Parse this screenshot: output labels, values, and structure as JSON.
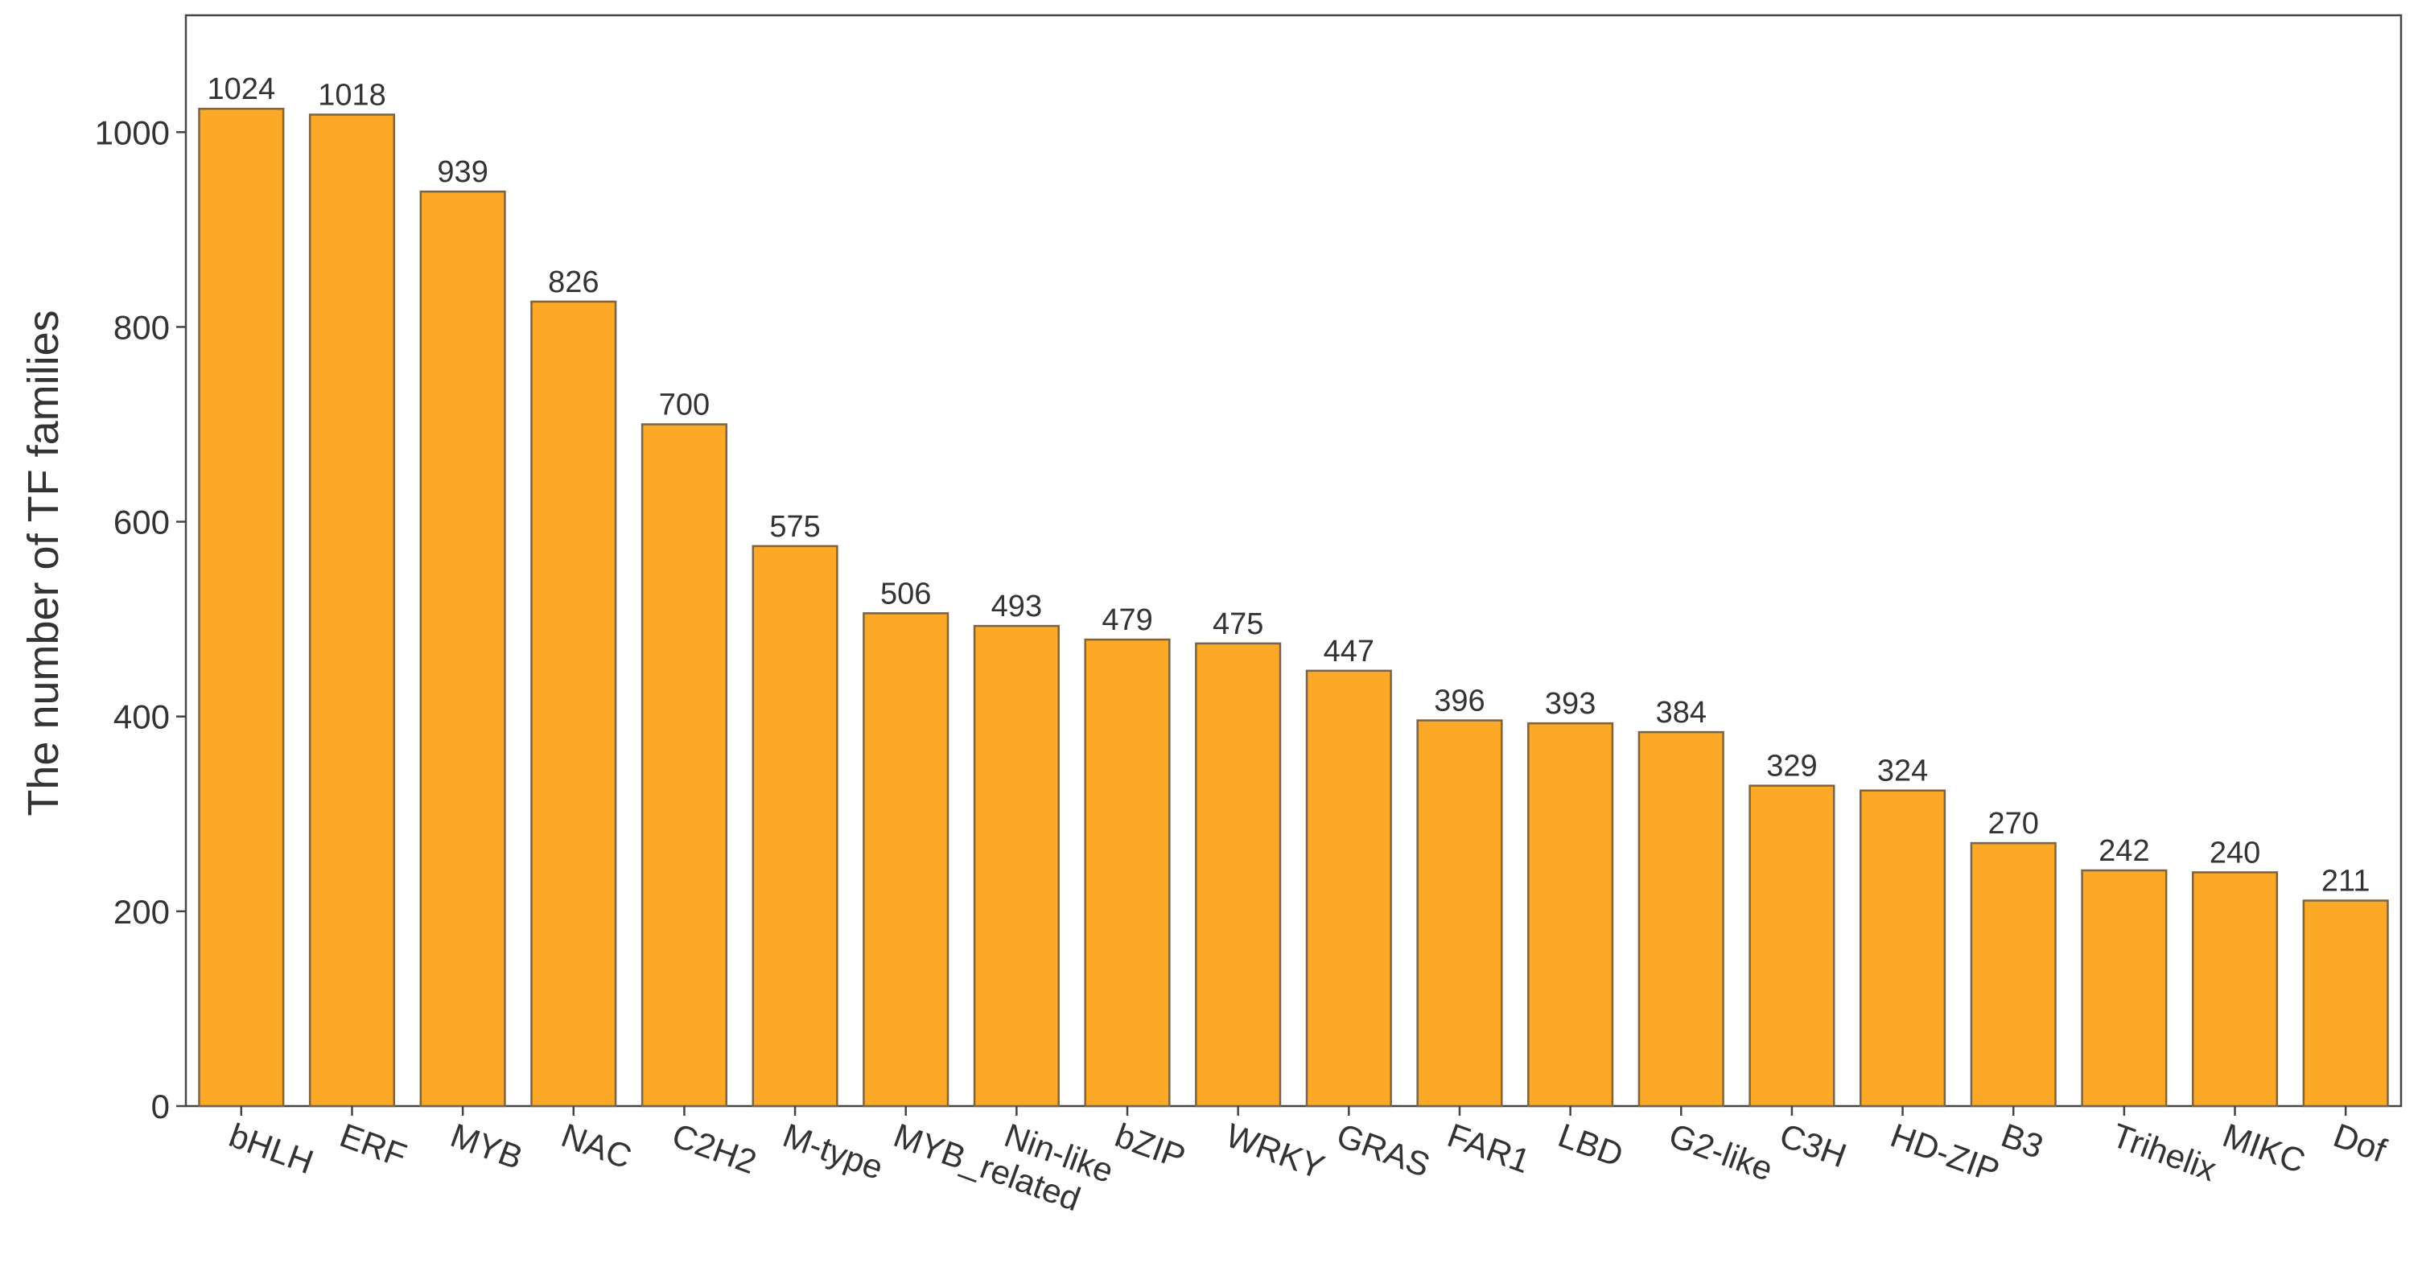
{
  "chart_data": {
    "type": "bar",
    "y_label": "The number of TF families",
    "categories": [
      "bHLH",
      "ERF",
      "MYB",
      "NAC",
      "C2H2",
      "M-type",
      "MYB_related",
      "Nin-like",
      "bZIP",
      "WRKY",
      "GRAS",
      "FAR1",
      "LBD",
      "G2-like",
      "C3H",
      "HD-ZIP",
      "B3",
      "Trihelix",
      "MIKC",
      "Dof"
    ],
    "values": [
      1024,
      1018,
      939,
      826,
      700,
      575,
      506,
      493,
      479,
      475,
      447,
      396,
      393,
      384,
      329,
      324,
      270,
      242,
      240,
      211
    ],
    "color": "#fba926",
    "ylim": [
      0,
      1120
    ],
    "yticks": [
      0,
      200,
      400,
      600,
      800,
      1000
    ],
    "grid": false
  }
}
